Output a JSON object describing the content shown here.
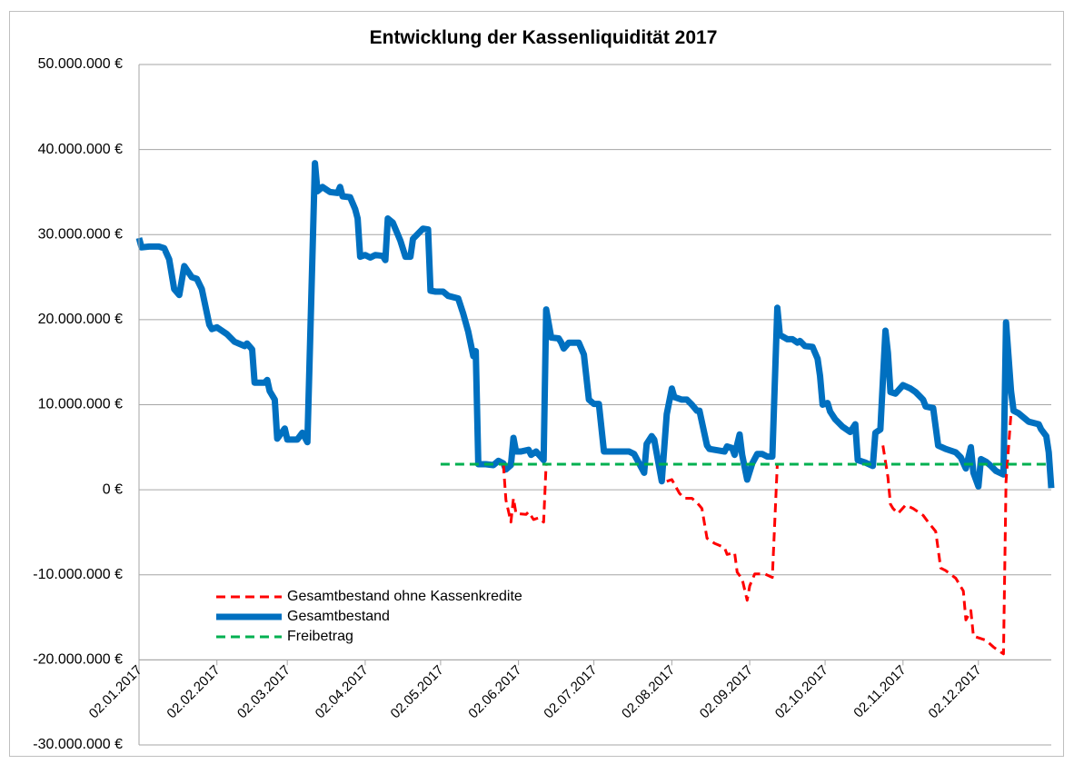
{
  "chart_data": {
    "type": "line",
    "title": "Entwicklung der Kassenliquidität 2017",
    "xlim": [
      "02.01.2017",
      "31.12.2017"
    ],
    "xticks": [
      "02.01.2017",
      "02.02.2017",
      "02.03.2017",
      "02.04.2017",
      "02.05.2017",
      "02.06.2017",
      "02.07.2017",
      "02.08.2017",
      "02.09.2017",
      "02.10.2017",
      "02.11.2017",
      "02.12.2017"
    ],
    "ylim": [
      -30000000,
      50000000
    ],
    "x_axis_crosses_at": -20000000,
    "yticks": [
      {
        "value": 50000000,
        "label": "50.000.000 €"
      },
      {
        "value": 40000000,
        "label": "40.000.000 €"
      },
      {
        "value": 30000000,
        "label": "30.000.000 €"
      },
      {
        "value": 20000000,
        "label": "20.000.000 €"
      },
      {
        "value": 10000000,
        "label": "10.000.000 €"
      },
      {
        "value": 0,
        "label": "0 €"
      },
      {
        "value": -10000000,
        "label": "-10.000.000 €"
      },
      {
        "value": -20000000,
        "label": "-20.000.000 €"
      },
      {
        "value": -30000000,
        "label": "-30.000.000 €"
      }
    ],
    "grid": true,
    "legend": "lower left",
    "series": [
      {
        "name": "Gesamtbestand ohne Kassenkredite",
        "color": "#ff0000",
        "line_style": "dashed",
        "x": [
          "27.05.2017",
          "28.05.2017",
          "30.05.2017",
          "31.05.2017",
          "01.06.2017",
          "05.06.2017",
          "06.06.2017",
          "08.06.2017",
          "10.06.2017",
          "12.06.2017",
          "13.06.2017",
          "20.07.2017",
          "31.07.2017",
          "02.08.2017",
          "05.08.2017",
          "07.08.2017",
          "10.08.2017",
          "12.08.2017",
          "14.08.2017",
          "16.08.2017",
          "19.08.2017",
          "23.08.2017",
          "24.08.2017",
          "27.08.2017",
          "28.08.2017",
          "30.08.2017",
          "01.09.2017",
          "02.09.2017",
          "04.09.2017",
          "08.09.2017",
          "11.09.2017",
          "13.09.2017",
          "20.09.2017",
          "25.10.2017",
          "27.10.2017",
          "28.10.2017",
          "29.10.2017",
          "31.10.2017",
          "03.11.2017",
          "06.11.2017",
          "10.11.2017",
          "12.11.2017",
          "15.11.2017",
          "17.11.2017",
          "19.11.2017",
          "23.11.2017",
          "26.11.2017",
          "27.11.2017",
          "29.11.2017",
          "30.11.2017",
          "01.12.2017",
          "05.12.2017",
          "08.12.2017",
          "10.12.2017",
          "12.12.2017",
          "13.12.2017",
          "15.12.2017"
        ],
        "values": [
          3000000,
          -1200000,
          -3800000,
          -1000000,
          -2800000,
          -2900000,
          -2600000,
          -3500000,
          -3300000,
          -3800000,
          3100000,
          null,
          1000000,
          1200000,
          -400000,
          -1000000,
          -1000000,
          -1500000,
          -2200000,
          -5700000,
          -6300000,
          -6800000,
          -7600000,
          -7400000,
          -9700000,
          -10500000,
          -13000000,
          -11300000,
          -9900000,
          -9900000,
          -10300000,
          3100000,
          null,
          5200000,
          1500000,
          -1700000,
          -2200000,
          -2800000,
          -1800000,
          -2200000,
          -3000000,
          -3800000,
          -4900000,
          -9200000,
          -9500000,
          -10400000,
          -11900000,
          -15300000,
          -14200000,
          -17200000,
          -17300000,
          -17700000,
          -18500000,
          -18900000,
          -19300000,
          1000000,
          9000000
        ]
      },
      {
        "name": "Gesamtbestand",
        "color": "#0070c0",
        "line_style": "solid",
        "x": [
          "02.01.2017",
          "03.01.2017",
          "06.01.2017",
          "10.01.2017",
          "12.01.2017",
          "14.01.2017",
          "16.01.2017",
          "18.01.2017",
          "20.01.2017",
          "23.01.2017",
          "25.01.2017",
          "27.01.2017",
          "30.01.2017",
          "31.01.2017",
          "02.02.2017",
          "06.02.2017",
          "09.02.2017",
          "13.02.2017",
          "14.02.2017",
          "16.02.2017",
          "17.02.2017",
          "21.02.2017",
          "22.02.2017",
          "23.02.2017",
          "25.02.2017",
          "26.02.2017",
          "01.03.2017",
          "02.03.2017",
          "06.03.2017",
          "08.03.2017",
          "10.03.2017",
          "13.03.2017",
          "14.03.2017",
          "16.03.2017",
          "19.03.2017",
          "22.03.2017",
          "23.03.2017",
          "24.03.2017",
          "27.03.2017",
          "29.03.2017",
          "30.03.2017",
          "31.03.2017",
          "02.04.2017",
          "04.04.2017",
          "06.04.2017",
          "09.04.2017",
          "10.04.2017",
          "11.04.2017",
          "13.04.2017",
          "16.04.2017",
          "18.04.2017",
          "20.04.2017",
          "21.04.2017",
          "23.04.2017",
          "25.04.2017",
          "27.04.2017",
          "28.04.2017",
          "30.04.2017",
          "03.05.2017",
          "05.05.2017",
          "09.05.2017",
          "11.05.2017",
          "13.05.2017",
          "15.05.2017",
          "16.05.2017",
          "17.05.2017",
          "20.05.2017",
          "23.05.2017",
          "25.05.2017",
          "27.05.2017",
          "28.05.2017",
          "30.05.2017",
          "31.05.2017",
          "01.06.2017",
          "03.06.2017",
          "06.06.2017",
          "07.06.2017",
          "09.06.2017",
          "12.06.2017",
          "13.06.2017",
          "15.06.2017",
          "18.06.2017",
          "19.06.2017",
          "20.06.2017",
          "22.06.2017",
          "26.06.2017",
          "28.06.2017",
          "30.06.2017",
          "02.07.2017",
          "04.07.2017",
          "06.07.2017",
          "16.07.2017",
          "18.07.2017",
          "20.07.2017",
          "22.07.2017",
          "23.07.2017",
          "25.07.2017",
          "26.07.2017",
          "29.07.2017",
          "31.07.2017",
          "02.08.2017",
          "03.08.2017",
          "06.08.2017",
          "08.08.2017",
          "10.08.2017",
          "12.08.2017",
          "13.08.2017",
          "16.08.2017",
          "17.08.2017",
          "21.08.2017",
          "23.08.2017",
          "24.08.2017",
          "26.08.2017",
          "27.08.2017",
          "29.08.2017",
          "30.08.2017",
          "01.09.2017",
          "03.09.2017",
          "05.09.2017",
          "07.09.2017",
          "09.09.2017",
          "11.09.2017",
          "13.09.2017",
          "14.09.2017",
          "17.09.2017",
          "19.09.2017",
          "21.09.2017",
          "22.09.2017",
          "24.09.2017",
          "27.09.2017",
          "29.09.2017",
          "30.09.2017",
          "01.10.2017",
          "03.10.2017",
          "04.10.2017",
          "06.10.2017",
          "09.10.2017",
          "12.10.2017",
          "14.10.2017",
          "15.10.2017",
          "18.10.2017",
          "21.10.2017",
          "22.10.2017",
          "24.10.2017",
          "26.10.2017",
          "27.10.2017",
          "28.10.2017",
          "30.10.2017",
          "02.11.2017",
          "05.11.2017",
          "07.11.2017",
          "10.11.2017",
          "11.11.2017",
          "14.11.2017",
          "16.11.2017",
          "19.11.2017",
          "23.11.2017",
          "25.11.2017",
          "27.11.2017",
          "29.11.2017",
          "30.11.2017",
          "02.12.2017",
          "03.12.2017",
          "05.12.2017",
          "07.12.2017",
          "09.12.2017",
          "12.12.2017",
          "13.12.2017",
          "15.12.2017",
          "16.12.2017",
          "18.12.2017",
          "22.12.2017",
          "26.12.2017",
          "27.12.2017",
          "29.12.2017",
          "30.12.2017",
          "31.12.2017"
        ],
        "values": [
          29600000,
          28500000,
          28600000,
          28600000,
          28400000,
          27100000,
          23600000,
          22900000,
          26300000,
          25000000,
          24800000,
          23600000,
          19400000,
          18900000,
          19100000,
          18300000,
          17400000,
          16900000,
          17200000,
          16500000,
          12600000,
          12600000,
          12900000,
          11600000,
          10600000,
          6000000,
          7200000,
          5900000,
          5900000,
          6700000,
          5600000,
          38400000,
          35100000,
          35600000,
          35000000,
          34900000,
          35600000,
          34500000,
          34400000,
          33000000,
          31900000,
          27400000,
          27600000,
          27300000,
          27600000,
          27500000,
          27000000,
          31900000,
          31400000,
          29300000,
          27400000,
          27400000,
          29500000,
          30100000,
          30700000,
          30600000,
          23400000,
          23300000,
          23300000,
          22800000,
          22500000,
          20700000,
          18600000,
          15700000,
          16300000,
          3000000,
          3000000,
          2900000,
          3400000,
          3100000,
          2400000,
          2900000,
          6100000,
          4500000,
          4500000,
          4700000,
          4100000,
          4500000,
          3500000,
          21200000,
          17900000,
          17800000,
          17300000,
          16600000,
          17300000,
          17300000,
          15900000,
          10600000,
          10100000,
          10100000,
          4500000,
          4500000,
          4200000,
          3100000,
          2000000,
          5400000,
          6300000,
          5900000,
          1000000,
          8900000,
          11900000,
          10900000,
          10600000,
          10600000,
          10000000,
          9300000,
          9300000,
          5200000,
          4800000,
          4600000,
          4500000,
          5100000,
          4900000,
          4100000,
          6500000,
          4100000,
          1200000,
          3100000,
          4200000,
          4200000,
          3900000,
          3900000,
          21400000,
          18200000,
          17700000,
          17700000,
          17300000,
          17500000,
          16900000,
          16800000,
          15400000,
          13400000,
          10000000,
          10200000,
          9200000,
          8300000,
          7400000,
          6800000,
          7700000,
          3500000,
          3200000,
          2800000,
          6700000,
          7100000,
          18700000,
          16100000,
          11500000,
          11300000,
          12300000,
          11900000,
          11500000,
          10600000,
          9800000,
          9600000,
          5200000,
          4800000,
          4400000,
          3800000,
          2500000,
          5000000,
          2000000,
          400000,
          3600000,
          3300000,
          2800000,
          2200000,
          1800000,
          19700000,
          11600000,
          9300000,
          9000000,
          8000000,
          7700000,
          7100000,
          6300000,
          4400000,
          200000
        ]
      },
      {
        "name": "Freibetrag",
        "color": "#00b050",
        "line_style": "dashed",
        "x": [
          "02.05.2017",
          "31.12.2017"
        ],
        "values": [
          3000000,
          3000000
        ]
      }
    ]
  }
}
